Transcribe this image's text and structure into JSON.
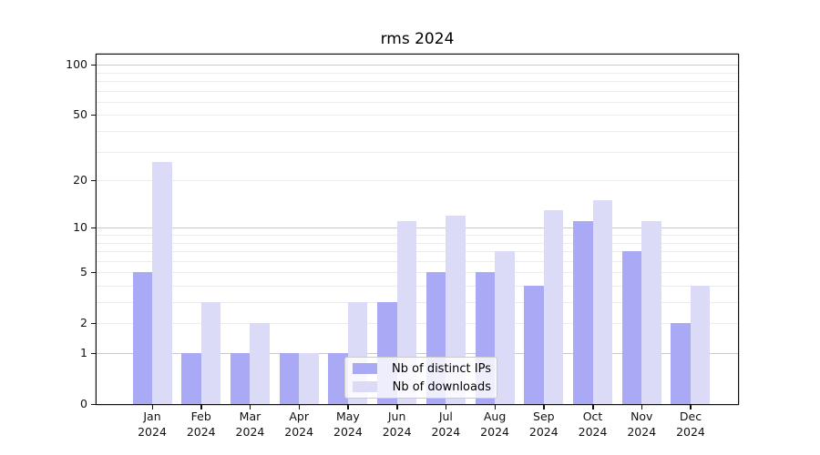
{
  "title": "rms 2024",
  "colors": {
    "ips_bar": "#a9a9f6",
    "downloads_bar": "#dbdbf8",
    "grid_major": "#c9c9c9",
    "grid_minor": "#ececec",
    "spine": "#111111",
    "text": "#111111",
    "legend_border": "#cbcbcb"
  },
  "legend": {
    "items": [
      {
        "label": "Nb of distinct IPs",
        "series": "ips"
      },
      {
        "label": "Nb of downloads",
        "series": "downloads"
      }
    ]
  },
  "y_axis": {
    "tick_labels": [
      "0",
      "1",
      "2",
      "5",
      "10",
      "20",
      "50",
      "100"
    ],
    "tick_values": [
      0,
      1,
      2,
      5,
      10,
      20,
      50,
      100
    ],
    "major_grid_values": [
      1,
      10,
      100
    ],
    "minor_grid_values": [
      2,
      3,
      4,
      5,
      6,
      7,
      8,
      9,
      20,
      30,
      40,
      50,
      60,
      70,
      80,
      90
    ],
    "scale": "log10(1+v)"
  },
  "x_axis": {
    "month_labels": [
      "Jan",
      "Feb",
      "Mar",
      "Apr",
      "May",
      "Jun",
      "Jul",
      "Aug",
      "Sep",
      "Oct",
      "Nov",
      "Dec"
    ],
    "year": "2024"
  },
  "chart_data": {
    "type": "bar",
    "title": "rms 2024",
    "categories": [
      "Jan 2024",
      "Feb 2024",
      "Mar 2024",
      "Apr 2024",
      "May 2024",
      "Jun 2024",
      "Jul 2024",
      "Aug 2024",
      "Sep 2024",
      "Oct 2024",
      "Nov 2024",
      "Dec 2024"
    ],
    "series": [
      {
        "name": "Nb of distinct IPs",
        "color": "#a9a9f6",
        "values": [
          5,
          1,
          1,
          1,
          1,
          3,
          5,
          5,
          4,
          11,
          7,
          2
        ]
      },
      {
        "name": "Nb of downloads",
        "color": "#dbdbf8",
        "values": [
          26,
          3,
          2,
          1,
          3,
          11,
          12,
          7,
          13,
          15,
          11,
          4
        ]
      }
    ],
    "xlabel": "",
    "ylabel": "",
    "yticks": [
      0,
      1,
      2,
      5,
      10,
      20,
      50,
      100
    ],
    "ylim": [
      0,
      115
    ],
    "scale": "log1p",
    "grid": true,
    "legend_position": "lower center"
  }
}
